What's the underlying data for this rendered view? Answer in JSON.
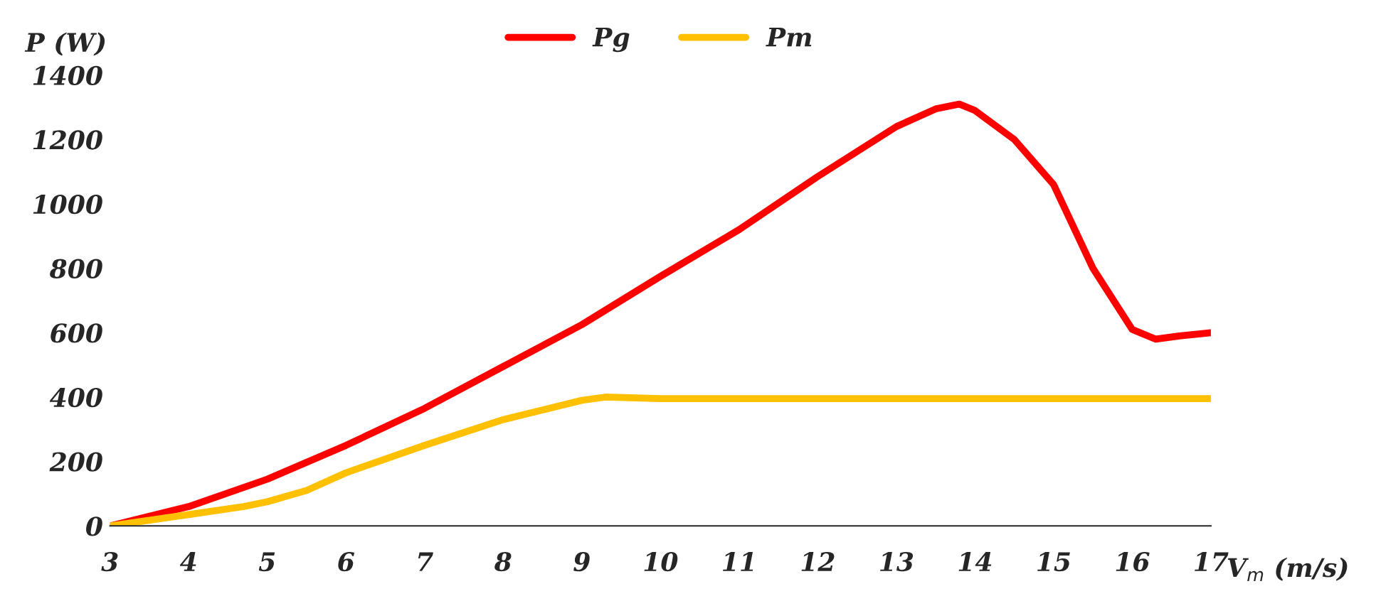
{
  "chart_data": {
    "type": "line",
    "xlabel": "V$_{m}$ (m/s)",
    "ylabel": "P (W)",
    "xlim": [
      3,
      17
    ],
    "xticks": [
      3,
      4,
      5,
      6,
      7,
      8,
      9,
      10,
      11,
      12,
      13,
      14,
      15,
      16,
      17
    ],
    "ylim": [
      0,
      1400
    ],
    "yticks": [
      0,
      200,
      400,
      600,
      800,
      1000,
      1200,
      1400
    ],
    "grid": false,
    "legend": "top",
    "marker": "none",
    "line_style": "solid",
    "series": [
      {
        "name": "Pg",
        "color": "#ff0000",
        "x": [
          3,
          4,
          5,
          6,
          7,
          8,
          9,
          10,
          11,
          12,
          13,
          13.5,
          13.8,
          14,
          14.5,
          15,
          15.5,
          16,
          16.3,
          16.6,
          17
        ],
        "values": [
          0,
          60,
          145,
          250,
          365,
          495,
          625,
          775,
          920,
          1085,
          1240,
          1295,
          1310,
          1290,
          1200,
          1060,
          800,
          610,
          580,
          590,
          600
        ]
      },
      {
        "name": "Pm",
        "color": "#ffc000",
        "x": [
          3,
          4,
          4.7,
          5,
          5.5,
          6,
          7,
          8,
          9,
          9.3,
          10,
          11,
          12,
          13,
          14,
          15,
          16,
          17
        ],
        "values": [
          0,
          35,
          60,
          75,
          110,
          165,
          250,
          330,
          390,
          400,
          395,
          395,
          395,
          395,
          395,
          395,
          395,
          395
        ]
      }
    ]
  }
}
